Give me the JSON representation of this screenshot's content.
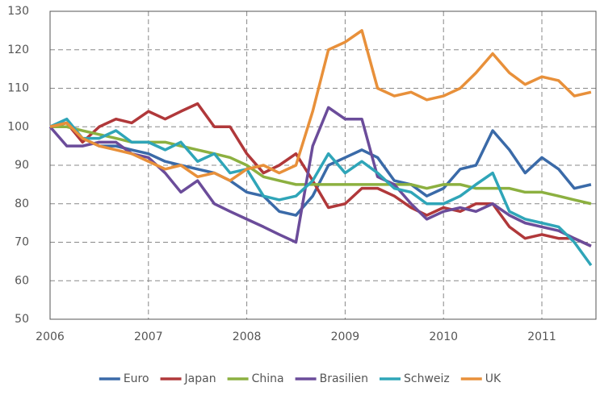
{
  "chart_data": {
    "type": "line",
    "x": [
      2006,
      2006.17,
      2006.33,
      2006.5,
      2006.67,
      2006.83,
      2007,
      2007.17,
      2007.33,
      2007.5,
      2007.67,
      2007.83,
      2008,
      2008.17,
      2008.33,
      2008.5,
      2008.67,
      2008.83,
      2009,
      2009.17,
      2009.33,
      2009.5,
      2009.67,
      2009.83,
      2010,
      2010.17,
      2010.33,
      2010.5,
      2010.67,
      2010.83,
      2011,
      2011.17,
      2011.33,
      2011.5
    ],
    "series": [
      {
        "name": "Euro",
        "color": "#3a6aa8",
        "values": [
          100,
          101,
          97,
          95,
          95,
          94,
          93,
          91,
          90,
          89,
          88,
          86,
          83,
          82,
          78,
          77,
          82,
          90,
          92,
          94,
          92,
          86,
          85,
          82,
          84,
          89,
          90,
          99,
          94,
          88,
          92,
          89,
          84,
          85
        ]
      },
      {
        "name": "Japan",
        "color": "#b0383a",
        "values": [
          100,
          101,
          96,
          100,
          102,
          101,
          104,
          102,
          104,
          106,
          100,
          100,
          93,
          88,
          90,
          93,
          86,
          79,
          80,
          84,
          84,
          82,
          79,
          77,
          79,
          78,
          80,
          80,
          74,
          71,
          72,
          71,
          71,
          69
        ]
      },
      {
        "name": "China",
        "color": "#8cb040",
        "values": [
          100,
          100,
          99,
          98,
          97,
          96,
          96,
          96,
          95,
          94,
          93,
          92,
          90,
          87,
          86,
          85,
          85,
          85,
          85,
          85,
          85,
          85,
          85,
          84,
          85,
          85,
          84,
          84,
          84,
          83,
          83,
          82,
          81,
          80
        ]
      },
      {
        "name": "Brasilien",
        "color": "#6b4c9a",
        "values": [
          100,
          95,
          95,
          96,
          96,
          93,
          92,
          88,
          83,
          86,
          80,
          78,
          76,
          74,
          72,
          70,
          95,
          105,
          102,
          102,
          87,
          85,
          80,
          76,
          78,
          79,
          78,
          80,
          77,
          75,
          74,
          73,
          71,
          69
        ]
      },
      {
        "name": "Schweiz",
        "color": "#2fa5b8",
        "values": [
          100,
          102,
          97,
          97,
          99,
          96,
          96,
          94,
          96,
          91,
          93,
          88,
          89,
          82,
          81,
          82,
          86,
          93,
          88,
          91,
          88,
          84,
          83,
          80,
          80,
          82,
          85,
          88,
          78,
          76,
          75,
          74,
          70,
          64
        ]
      },
      {
        "name": "UK",
        "color": "#e8903a",
        "values": [
          100,
          101,
          97,
          95,
          94,
          93,
          91,
          89,
          90,
          87,
          88,
          86,
          89,
          90,
          88,
          90,
          104,
          120,
          122,
          125,
          110,
          108,
          109,
          107,
          108,
          110,
          114,
          119,
          114,
          111,
          113,
          112,
          108,
          109
        ]
      }
    ],
    "xlim": [
      2006,
      2011.55
    ],
    "xticks": [
      2006,
      2007,
      2008,
      2009,
      2010,
      2011
    ],
    "ylim": [
      50,
      130
    ],
    "yticks": [
      50,
      60,
      70,
      80,
      90,
      100,
      110,
      120,
      130
    ],
    "grid": true,
    "legend": "bottom"
  }
}
